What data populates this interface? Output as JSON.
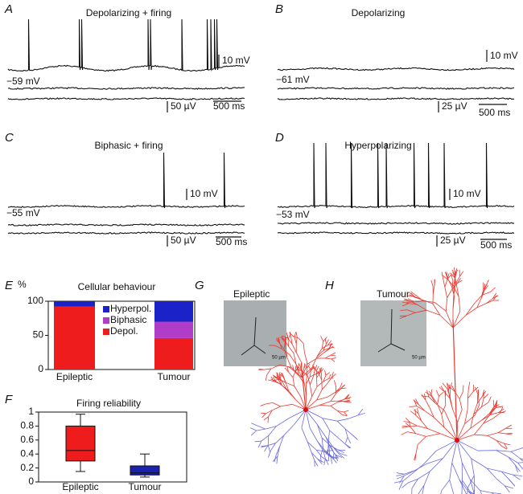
{
  "panels": [
    {
      "letter": "A",
      "title": "Depolarizing + firing",
      "potential": "−59 mV",
      "scale_v": "10 mV",
      "scale_field": "50 µV",
      "scale_t": "500 ms"
    },
    {
      "letter": "B",
      "title": "Depolarizing",
      "potential": "−61 mV",
      "scale_v": "10 mV",
      "scale_field": "25 µV",
      "scale_t": "500 ms"
    },
    {
      "letter": "C",
      "title": "Biphasic + firing",
      "potential": "−55 mV",
      "scale_v": "10 mV",
      "scale_field": "50 µV",
      "scale_t": "500 ms"
    },
    {
      "letter": "D",
      "title": "Hyperpolarizing",
      "potential": "−53 mV",
      "scale_v": "10 mV",
      "scale_field": "25 µV",
      "scale_t": "500 ms"
    }
  ],
  "chart_data": [
    {
      "type": "stacked_bar",
      "letter": "E",
      "title": "Cellular behaviour",
      "y_label": "%",
      "categories": [
        "Epileptic",
        "Tumour"
      ],
      "series": [
        {
          "name": "Depol.",
          "color": "#ee1c1c",
          "values": [
            92,
            46
          ]
        },
        {
          "name": "Biphasic",
          "color": "#b03cc8",
          "values": [
            0,
            24
          ]
        },
        {
          "name": "Hyperpol.",
          "color": "#1a22c8",
          "values": [
            8,
            30
          ]
        }
      ],
      "ylim": [
        0,
        100
      ],
      "yticks": [
        0,
        50,
        100
      ]
    },
    {
      "type": "box",
      "letter": "F",
      "title": "Firing reliability",
      "categories": [
        "Epileptic",
        "Tumour"
      ],
      "colors": [
        "#ee1c1c",
        "#1a22b0"
      ],
      "min": [
        0.15,
        0.07
      ],
      "q1": [
        0.3,
        0.1
      ],
      "median": [
        0.45,
        0.13
      ],
      "q3": [
        0.8,
        0.23
      ],
      "max": [
        0.97,
        0.4
      ],
      "ylim": [
        0,
        1
      ],
      "yticks": [
        0,
        0.2,
        0.4,
        0.6,
        0.8,
        1
      ]
    }
  ],
  "images": [
    {
      "letter": "G",
      "title": "Epileptic",
      "scale": "50 µm"
    },
    {
      "letter": "H",
      "title": "Tumour",
      "scale": "50 µm"
    }
  ]
}
